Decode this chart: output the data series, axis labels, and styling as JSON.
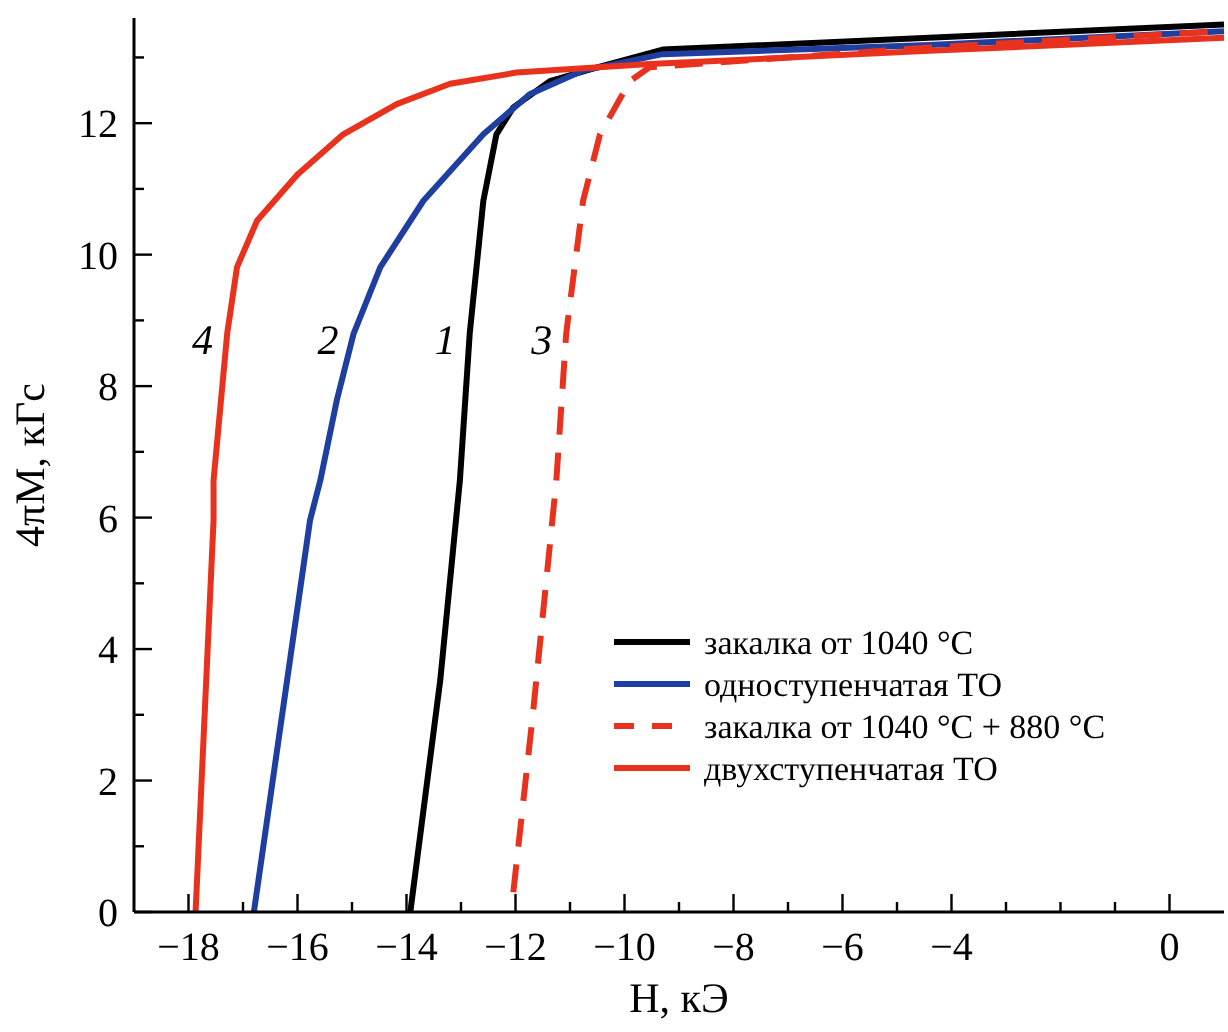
{
  "chart_data": {
    "type": "line",
    "xlabel": "H, кЭ",
    "ylabel": "4πM, кГс",
    "xlim": [
      -19,
      1
    ],
    "ylim": [
      0,
      13.6
    ],
    "xticks": [
      -18,
      {
        "value": -17,
        "label": null
      },
      -16,
      {
        "value": -15,
        "label": null
      },
      -14,
      {
        "value": -13,
        "label": null
      },
      -12,
      {
        "value": -11,
        "label": null
      },
      -10,
      {
        "value": -9,
        "label": null
      },
      -8,
      {
        "value": -7,
        "label": null
      },
      -6,
      {
        "value": -5,
        "label": null
      },
      -4,
      {
        "value": -3,
        "label": null
      },
      {
        "value": -2,
        "label": null
      },
      {
        "value": -1,
        "label": null
      },
      0
    ],
    "yticks": [
      0,
      {
        "value": 1,
        "label": null
      },
      2,
      {
        "value": 3,
        "label": null
      },
      4,
      {
        "value": 5,
        "label": null
      },
      6,
      {
        "value": 7,
        "label": null
      },
      8,
      {
        "value": 9,
        "label": null
      },
      10,
      {
        "value": 11,
        "label": null
      },
      12,
      {
        "value": 13,
        "label": null
      }
    ],
    "grid": false,
    "legend": "bottom right",
    "series": [
      {
        "name": "закалка от 1040 °C",
        "color": "#000000",
        "line_style": "solid",
        "x": [
          -13.93,
          -13.38,
          -13.02,
          -12.84,
          -12.59,
          -12.35,
          -12.04,
          -11.37,
          -10.5,
          -9.3,
          -4.41,
          1
        ],
        "values": [
          0,
          3.53,
          6.57,
          8.8,
          10.82,
          11.83,
          12.24,
          12.64,
          12.85,
          13.12,
          13.3,
          13.5
        ]
      },
      {
        "name": "одноступенчатая ТО",
        "color": "#1f3fa0",
        "line_style": "solid",
        "x": [
          -16.8,
          -15.77,
          -15.58,
          -15.28,
          -14.97,
          -14.48,
          -13.69,
          -12.59,
          -11.74,
          -10.76,
          -9.3,
          -4.41,
          1
        ],
        "values": [
          0,
          5.96,
          6.57,
          7.78,
          8.8,
          9.81,
          10.82,
          11.83,
          12.44,
          12.8,
          13.05,
          13.19,
          13.4
        ]
      },
      {
        "name": "закалка от 1040 °C + 880 °C",
        "color": "#e8321e",
        "line_style": "dashed",
        "x": [
          -12.04,
          -11.68,
          -11.25,
          -11.07,
          -10.76,
          -10.45,
          -9.9,
          -9.54,
          -4.41,
          1
        ],
        "values": [
          0.3,
          3.02,
          6.57,
          8.8,
          10.82,
          11.83,
          12.64,
          12.85,
          13.15,
          13.4
        ]
      },
      {
        "name": "двухступенчатая ТО",
        "color": "#e8321e",
        "line_style": "solid",
        "x": [
          -17.87,
          -17.54,
          -17.54,
          -17.29,
          -17.11,
          -16.74,
          -16.0,
          -15.16,
          -14.18,
          -13.2,
          -11.98,
          -9.54,
          -4.41,
          1
        ],
        "values": [
          0,
          5.96,
          6.57,
          8.8,
          9.81,
          10.52,
          11.22,
          11.83,
          12.29,
          12.6,
          12.77,
          12.9,
          13.1,
          13.3
        ]
      }
    ],
    "annotations": [
      "4",
      "2",
      "1",
      "3"
    ]
  }
}
